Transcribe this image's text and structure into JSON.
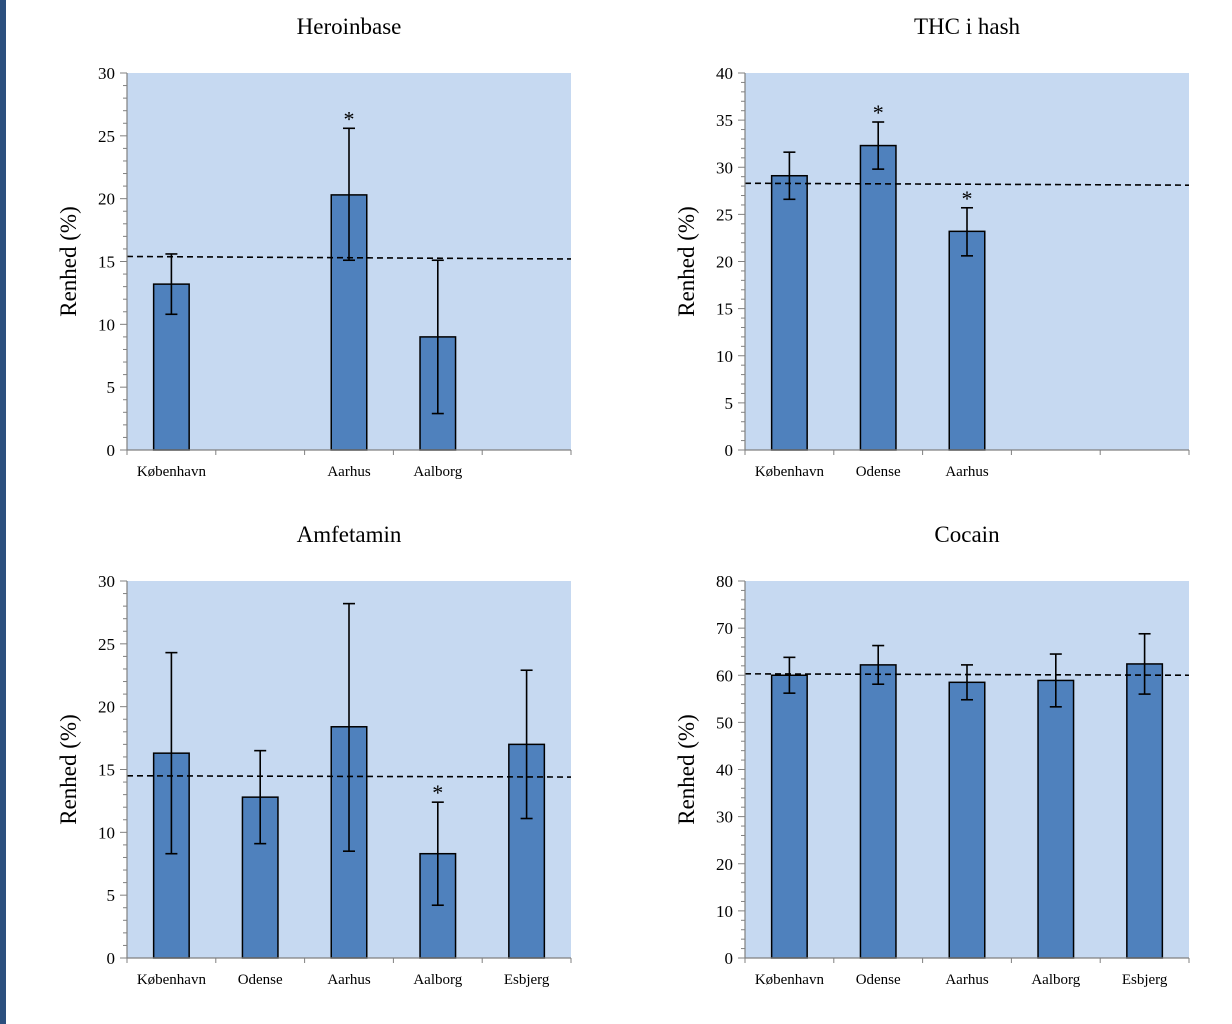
{
  "figure": {
    "plot_bg_color": "#c6d9f1",
    "bar_color": "#4f81bd",
    "bar_edge_color": "#000000",
    "side_rule_color": "#2b4f7e"
  },
  "chart_data": [
    {
      "type": "bar",
      "title": "Heroinbase",
      "ylabel": "Renhed (%)",
      "xlabel": "",
      "ylim": [
        0,
        30
      ],
      "ytick_step": 5,
      "categories": [
        "København",
        "",
        "Aarhus",
        "Aalborg",
        ""
      ],
      "values": [
        13.2,
        null,
        20.3,
        9.0,
        null
      ],
      "error_low": [
        10.8,
        null,
        15.1,
        2.9,
        null
      ],
      "error_high": [
        15.6,
        null,
        25.6,
        15.1,
        null
      ],
      "significant": [
        false,
        false,
        true,
        false,
        false
      ],
      "reference_line": {
        "style": "dashed",
        "y_start": 15.4,
        "y_end": 15.2
      },
      "grid": false,
      "legend": "none"
    },
    {
      "type": "bar",
      "title": "THC i hash",
      "ylabel": "Renhed (%)",
      "xlabel": "",
      "ylim": [
        0,
        40
      ],
      "ytick_step": 5,
      "categories": [
        "København",
        "Odense",
        "Aarhus",
        "",
        ""
      ],
      "values": [
        29.1,
        32.3,
        23.2,
        null,
        null
      ],
      "error_low": [
        26.6,
        29.8,
        20.6,
        null,
        null
      ],
      "error_high": [
        31.6,
        34.8,
        25.7,
        null,
        null
      ],
      "significant": [
        false,
        true,
        true,
        false,
        false
      ],
      "reference_line": {
        "style": "dashed",
        "y_start": 28.3,
        "y_end": 28.1
      },
      "grid": false,
      "legend": "none"
    },
    {
      "type": "bar",
      "title": "Amfetamin",
      "ylabel": "Renhed (%)",
      "xlabel": "",
      "ylim": [
        0,
        30
      ],
      "ytick_step": 5,
      "categories": [
        "København",
        "Odense",
        "Aarhus",
        "Aalborg",
        "Esbjerg"
      ],
      "values": [
        16.3,
        12.8,
        18.4,
        8.3,
        17.0
      ],
      "error_low": [
        8.3,
        9.1,
        8.5,
        4.2,
        11.1
      ],
      "error_high": [
        24.3,
        16.5,
        28.2,
        12.4,
        22.9
      ],
      "significant": [
        false,
        false,
        false,
        true,
        false
      ],
      "reference_line": {
        "style": "dashed",
        "y_start": 14.5,
        "y_end": 14.4
      },
      "grid": false,
      "legend": "none"
    },
    {
      "type": "bar",
      "title": "Cocain",
      "ylabel": "Renhed (%)",
      "xlabel": "",
      "ylim": [
        0,
        80
      ],
      "ytick_step": 10,
      "categories": [
        "København",
        "Odense",
        "Aarhus",
        "Aalborg",
        "Esbjerg"
      ],
      "values": [
        60.0,
        62.2,
        58.5,
        58.9,
        62.4
      ],
      "error_low": [
        56.2,
        58.1,
        54.8,
        53.3,
        56.0
      ],
      "error_high": [
        63.8,
        66.3,
        62.2,
        64.5,
        68.8
      ],
      "significant": [
        false,
        false,
        false,
        false,
        false
      ],
      "reference_line": {
        "style": "dashed",
        "y_start": 60.3,
        "y_end": 60.0
      },
      "grid": false,
      "legend": "none"
    }
  ]
}
